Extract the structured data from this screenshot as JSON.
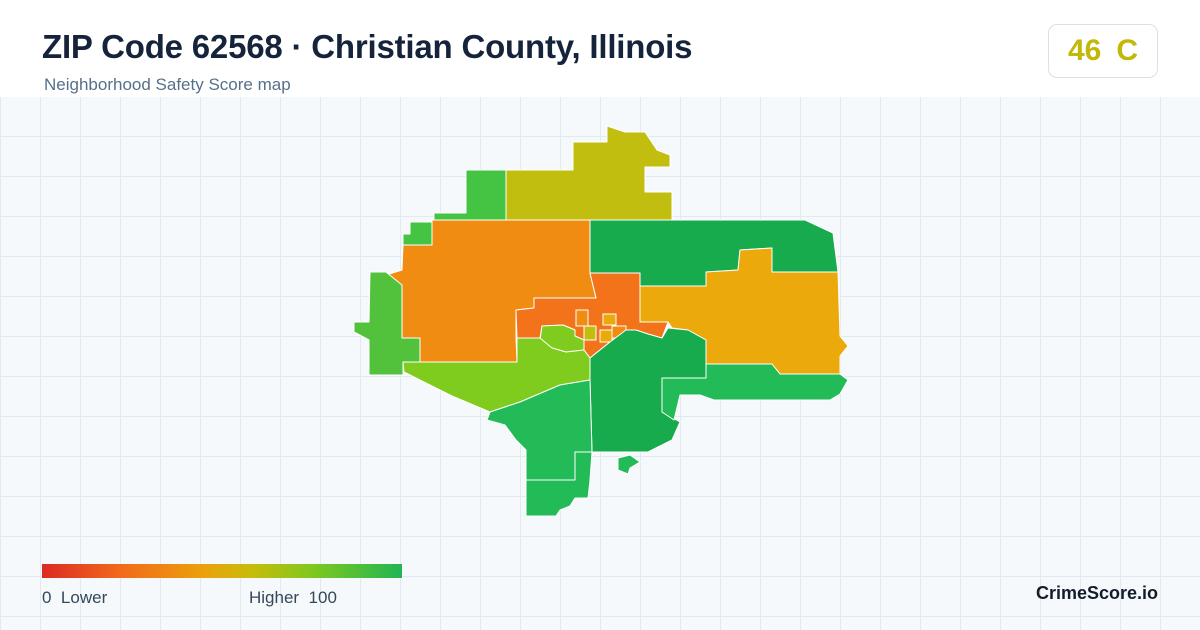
{
  "header": {
    "title": "ZIP Code 62568 · Christian County, Illinois",
    "subtitle": "Neighborhood Safety Score map"
  },
  "score": {
    "value": "46",
    "grade": "C",
    "color": "#c2b80a"
  },
  "legend": {
    "min_label": "0",
    "low_label": "Lower",
    "high_label": "Higher",
    "max_label": "100",
    "gradient_colors": [
      "#dc2a23",
      "#f26a1b",
      "#eaa10c",
      "#c8bc0a",
      "#7fc81e",
      "#22b553"
    ]
  },
  "brand": "CrimeScore.io",
  "map": {
    "region_colors": {
      "north-yellow": "#c2be0f",
      "dark-green": "#18ab4e",
      "orange": "#f08c12",
      "red-orange": "#f3731b",
      "amber": "#eca90c",
      "yellow-green": "#7fcb1e",
      "green": "#44c442",
      "light-green": "#22bb57",
      "mid-green": "#52c13c"
    }
  }
}
